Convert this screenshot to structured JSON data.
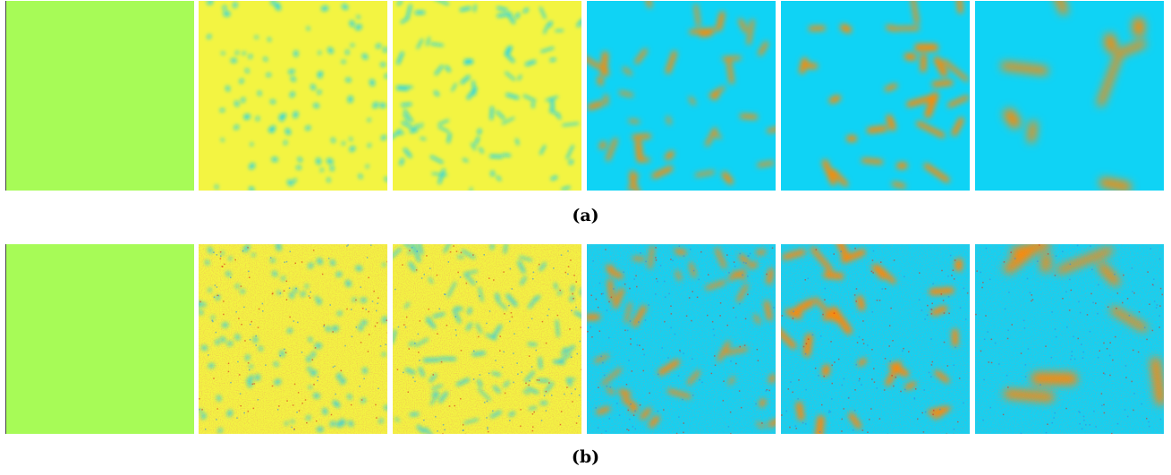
{
  "colors": {
    "uniform": "#a7fb57",
    "yellow": "#f3f442",
    "cyan": "#0fd3f5",
    "orange": "#ff8a00",
    "blue": "#2e8ae8",
    "red": "#d7301c",
    "green": "#9ef060"
  },
  "rows": [
    {
      "id": "a",
      "caption": "(a)",
      "noisy": false,
      "panels": [
        {
          "style": "uniform"
        },
        {
          "style": "fine-spots",
          "seed": 11,
          "blobs": 95,
          "scale": 0.55
        },
        {
          "style": "fine-labyrinth",
          "seed": 23,
          "blobs": 85,
          "scale": 0.75
        },
        {
          "style": "labyrinth",
          "seed": 37,
          "blobs": 42,
          "scale": 1.15
        },
        {
          "style": "labyrinth-coarse",
          "seed": 51,
          "blobs": 30,
          "scale": 1.45
        },
        {
          "style": "large-domains",
          "seed": 67,
          "blobs": 9,
          "scale": 2.6
        }
      ]
    },
    {
      "id": "b",
      "caption": "(b)",
      "noisy": true,
      "panels": [
        {
          "style": "uniform"
        },
        {
          "style": "fine-spots",
          "seed": 71,
          "blobs": 95,
          "scale": 0.55
        },
        {
          "style": "fine-labyrinth",
          "seed": 83,
          "blobs": 85,
          "scale": 0.75
        },
        {
          "style": "labyrinth",
          "seed": 97,
          "blobs": 42,
          "scale": 1.15
        },
        {
          "style": "labyrinth-coarse",
          "seed": 109,
          "blobs": 30,
          "scale": 1.45
        },
        {
          "style": "large-domains",
          "seed": 127,
          "blobs": 9,
          "scale": 2.6
        }
      ]
    }
  ]
}
